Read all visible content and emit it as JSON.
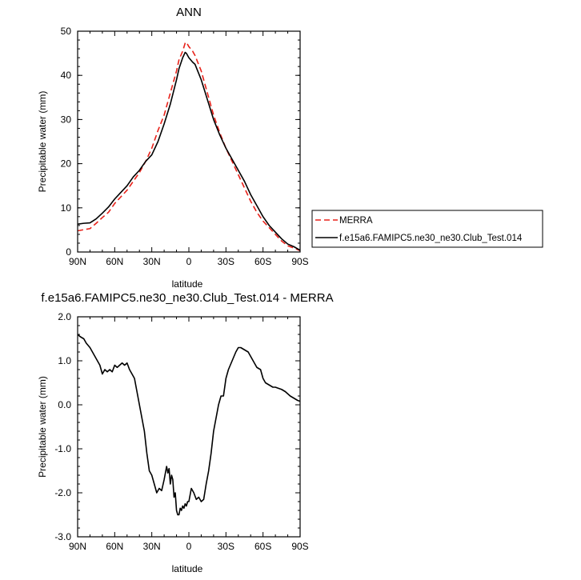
{
  "chart_data": [
    {
      "type": "line",
      "title": "ANN",
      "xlabel": "latitude",
      "ylabel": "Precipitable water (mm)",
      "xlim": [
        90,
        -90
      ],
      "ylim": [
        0,
        50
      ],
      "x_ticks": [
        90,
        60,
        30,
        0,
        -30,
        -60,
        -90
      ],
      "x_tick_labels": [
        "90N",
        "60N",
        "30N",
        "0",
        "30S",
        "60S",
        "90S"
      ],
      "y_ticks": [
        0,
        10,
        20,
        30,
        40,
        50
      ],
      "y_tick_labels": [
        "0",
        "10",
        "20",
        "30",
        "40",
        "50"
      ],
      "legend_position": "right",
      "series": [
        {
          "name": "MERRA",
          "color": "#e8221a",
          "dash": "dashed",
          "x": [
            90,
            80,
            75,
            70,
            65,
            60,
            55,
            50,
            45,
            40,
            35,
            30,
            25,
            20,
            15,
            10,
            8,
            5,
            3,
            2,
            0,
            -3,
            -5,
            -10,
            -15,
            -20,
            -25,
            -30,
            -35,
            -40,
            -45,
            -50,
            -55,
            -60,
            -65,
            -70,
            -75,
            -80,
            -85,
            -90
          ],
          "y": [
            4.8,
            5.3,
            6.5,
            7.8,
            9.0,
            11.0,
            12.5,
            14.0,
            16.0,
            18.0,
            20.5,
            23.5,
            27.5,
            31.0,
            36.0,
            41.0,
            43.5,
            45.5,
            47.3,
            47.5,
            46.5,
            45.5,
            44.5,
            41.0,
            36.0,
            31.0,
            27.0,
            23.5,
            20.5,
            17.5,
            14.5,
            11.5,
            9.0,
            7.0,
            5.5,
            4.0,
            2.5,
            1.4,
            0.9,
            0.3
          ]
        },
        {
          "name": "f.e15a6.FAMIPC5.ne30_ne30.Club_Test.014",
          "color": "#000000",
          "dash": "solid",
          "x": [
            90,
            85,
            80,
            75,
            70,
            65,
            60,
            55,
            50,
            45,
            40,
            35,
            30,
            25,
            20,
            15,
            10,
            8,
            5,
            3,
            2,
            0,
            -3,
            -5,
            -10,
            -15,
            -20,
            -25,
            -30,
            -35,
            -40,
            -45,
            -50,
            -55,
            -60,
            -65,
            -70,
            -75,
            -80,
            -85,
            -90
          ],
          "y": [
            6.3,
            6.5,
            6.6,
            7.5,
            8.8,
            10.2,
            12.0,
            13.5,
            15.0,
            17.0,
            18.5,
            20.5,
            22.0,
            25.0,
            29.0,
            33.5,
            39.0,
            41.5,
            44.0,
            45.2,
            45.0,
            44.0,
            43.0,
            42.5,
            39.0,
            34.5,
            30.0,
            26.5,
            23.5,
            21.0,
            18.5,
            16.0,
            13.0,
            10.5,
            8.0,
            6.0,
            4.5,
            3.0,
            1.8,
            1.2,
            0.4
          ]
        }
      ]
    },
    {
      "type": "line",
      "title": "f.e15a6.FAMIPC5.ne30_ne30.Club_Test.014 - MERRA",
      "xlabel": "latitude",
      "ylabel": "Precipitable water (mm)",
      "xlim": [
        90,
        -90
      ],
      "ylim": [
        -3.0,
        2.0
      ],
      "x_ticks": [
        90,
        60,
        30,
        0,
        -30,
        -60,
        -90
      ],
      "x_tick_labels": [
        "90N",
        "60N",
        "30N",
        "0",
        "30S",
        "60S",
        "90S"
      ],
      "y_ticks": [
        -3.0,
        -2.0,
        -1.0,
        0.0,
        1.0,
        2.0
      ],
      "y_tick_labels": [
        "-3.0",
        "-2.0",
        "-1.0",
        "0.0",
        "1.0",
        "2.0"
      ],
      "series": [
        {
          "color": "#000000",
          "dash": "solid",
          "x": [
            90,
            88,
            85,
            83,
            80,
            78,
            76,
            74,
            72,
            70,
            68,
            66,
            64,
            62,
            60,
            58,
            56,
            54,
            52,
            50,
            48,
            46,
            44,
            42,
            40,
            38,
            36,
            34,
            32,
            30,
            28,
            26,
            24,
            22,
            20,
            18,
            17,
            16,
            15,
            14,
            13,
            12,
            11,
            10,
            9,
            8,
            7,
            6,
            5,
            4,
            3,
            2,
            1,
            0,
            -2,
            -4,
            -6,
            -8,
            -10,
            -12,
            -14,
            -16,
            -18,
            -20,
            -22,
            -24,
            -26,
            -28,
            -30,
            -32,
            -35,
            -38,
            -40,
            -42,
            -45,
            -48,
            -50,
            -52,
            -55,
            -58,
            -60,
            -62,
            -65,
            -68,
            -70,
            -72,
            -75,
            -78,
            -80,
            -82,
            -85,
            -88,
            -90
          ],
          "y": [
            1.6,
            1.55,
            1.5,
            1.4,
            1.3,
            1.2,
            1.1,
            1.0,
            0.9,
            0.7,
            0.8,
            0.75,
            0.8,
            0.75,
            0.9,
            0.85,
            0.9,
            0.95,
            0.9,
            0.95,
            0.8,
            0.7,
            0.6,
            0.3,
            0.0,
            -0.3,
            -0.6,
            -1.1,
            -1.5,
            -1.6,
            -1.8,
            -2.0,
            -1.9,
            -1.95,
            -1.7,
            -1.4,
            -1.55,
            -1.45,
            -1.8,
            -1.6,
            -1.7,
            -2.1,
            -2.0,
            -2.4,
            -2.5,
            -2.5,
            -2.35,
            -2.4,
            -2.3,
            -2.35,
            -2.25,
            -2.3,
            -2.2,
            -2.2,
            -1.9,
            -2.0,
            -2.15,
            -2.1,
            -2.2,
            -2.15,
            -1.8,
            -1.5,
            -1.1,
            -0.6,
            -0.3,
            0.0,
            0.2,
            0.2,
            0.6,
            0.8,
            1.0,
            1.2,
            1.3,
            1.3,
            1.25,
            1.2,
            1.1,
            1.0,
            0.85,
            0.8,
            0.6,
            0.5,
            0.45,
            0.4,
            0.4,
            0.38,
            0.35,
            0.3,
            0.25,
            0.2,
            0.15,
            0.1,
            0.08
          ]
        }
      ]
    }
  ]
}
